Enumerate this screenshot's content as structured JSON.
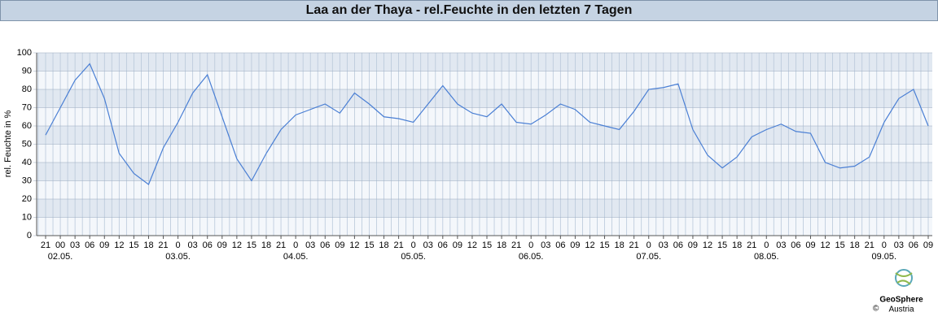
{
  "chart_data": {
    "type": "line",
    "title": "Laa an der Thaya - rel.Feuchte in den letzten 7 Tagen",
    "y_label": "rel. Feuchte in %",
    "categories": [
      "21",
      "00",
      "03",
      "06",
      "09",
      "12",
      "15",
      "18",
      "21",
      "0",
      "03",
      "06",
      "09",
      "12",
      "15",
      "18",
      "21",
      "0",
      "03",
      "06",
      "09",
      "12",
      "15",
      "18",
      "21",
      "0",
      "03",
      "06",
      "09",
      "12",
      "15",
      "18",
      "21",
      "0",
      "03",
      "06",
      "09",
      "12",
      "15",
      "18",
      "21",
      "0",
      "03",
      "06",
      "09",
      "12",
      "15",
      "18",
      "21",
      "0",
      "03",
      "06",
      "09",
      "12",
      "15",
      "18",
      "21",
      "0",
      "03",
      "06",
      "09"
    ],
    "dates": [
      null,
      "02.05.",
      null,
      null,
      null,
      null,
      null,
      null,
      null,
      "03.05.",
      null,
      null,
      null,
      null,
      null,
      null,
      null,
      "04.05.",
      null,
      null,
      null,
      null,
      null,
      null,
      null,
      "05.05.",
      null,
      null,
      null,
      null,
      null,
      null,
      null,
      "06.05.",
      null,
      null,
      null,
      null,
      null,
      null,
      null,
      "07.05.",
      null,
      null,
      null,
      null,
      null,
      null,
      null,
      "08.05.",
      null,
      null,
      null,
      null,
      null,
      null,
      null,
      "09.05.",
      null,
      null,
      null
    ],
    "series": [
      {
        "name": "rel. Feuchte",
        "color": "#4a7fd4",
        "values": [
          55,
          70,
          85,
          94,
          75,
          45,
          34,
          28,
          48,
          62,
          78,
          88,
          65,
          42,
          30,
          45,
          58,
          66,
          69,
          72,
          67,
          78,
          72,
          65,
          64,
          62,
          72,
          82,
          72,
          67,
          65,
          72,
          62,
          61,
          66,
          72,
          69,
          62,
          60,
          58,
          68,
          80,
          81,
          83,
          58,
          44,
          37,
          43,
          54,
          58,
          61,
          57,
          56,
          40,
          37,
          38,
          43,
          62,
          75,
          80,
          60
        ]
      }
    ],
    "ylim": [
      0,
      100
    ],
    "yticks": [
      0,
      10,
      20,
      30,
      40,
      50,
      60,
      70,
      80,
      90,
      100
    ],
    "grid": true,
    "footer": {
      "logo": "GeoSphere",
      "sub": "Austria",
      "copyright": "©"
    }
  }
}
